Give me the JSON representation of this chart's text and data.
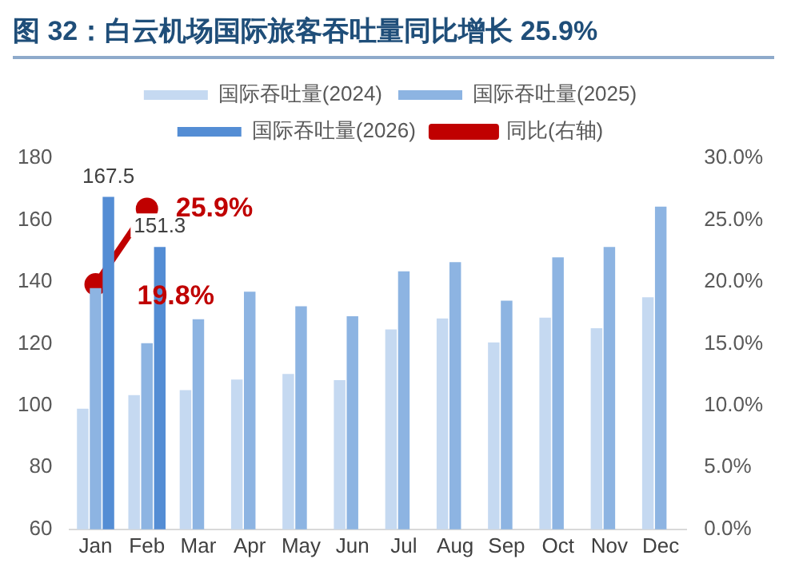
{
  "chart_data": {
    "type": "bar",
    "title": "图 32：白云机场国际旅客吞吐量同比增长 25.9%",
    "categories": [
      "Jan",
      "Feb",
      "Mar",
      "Apr",
      "May",
      "Jun",
      "Jul",
      "Aug",
      "Sep",
      "Oct",
      "Nov",
      "Dec"
    ],
    "series": [
      {
        "name": "国际吞吐量(2024)",
        "color": "#c5d9f1",
        "values": [
          99,
          103.4,
          105,
          108.4,
          110.2,
          108.2,
          124.6,
          128.2,
          120.4,
          128.4,
          125,
          135
        ]
      },
      {
        "name": "国际吞吐量(2025)",
        "color": "#8db4e2",
        "values": [
          138,
          120.2,
          127.9,
          136.8,
          132.1,
          128.9,
          143.4,
          146.4,
          133.9,
          147.9,
          151.3,
          164.3
        ]
      },
      {
        "name": "国际吞吐量(2026)",
        "color": "#548dd4",
        "values": [
          167.5,
          151.3,
          null,
          null,
          null,
          null,
          null,
          null,
          null,
          null,
          null,
          null
        ],
        "value_labels": [
          "167.5",
          "151.3",
          null,
          null,
          null,
          null,
          null,
          null,
          null,
          null,
          null,
          null
        ]
      },
      {
        "name": "同比(右轴)",
        "type": "line",
        "axis": "y2",
        "color": "#c00000",
        "marker": "circle",
        "values": [
          19.8,
          25.9,
          null,
          null,
          null,
          null,
          null,
          null,
          null,
          null,
          null,
          null
        ],
        "value_labels": [
          "19.8%",
          "25.9%",
          null,
          null,
          null,
          null,
          null,
          null,
          null,
          null,
          null,
          null
        ]
      }
    ],
    "ylim": [
      60,
      180
    ],
    "yticks": [
      60,
      80,
      100,
      120,
      140,
      160,
      180
    ],
    "y2lim": [
      0,
      30
    ],
    "y2ticks": [
      {
        "value": 0,
        "label": "0.0%"
      },
      {
        "value": 5,
        "label": "5.0%"
      },
      {
        "value": 10,
        "label": "10.0%"
      },
      {
        "value": 15,
        "label": "15.0%"
      },
      {
        "value": 20,
        "label": "20.0%"
      },
      {
        "value": 25,
        "label": "25.0%"
      },
      {
        "value": 30,
        "label": "30.0%"
      }
    ],
    "grid": false,
    "legend": "top"
  }
}
